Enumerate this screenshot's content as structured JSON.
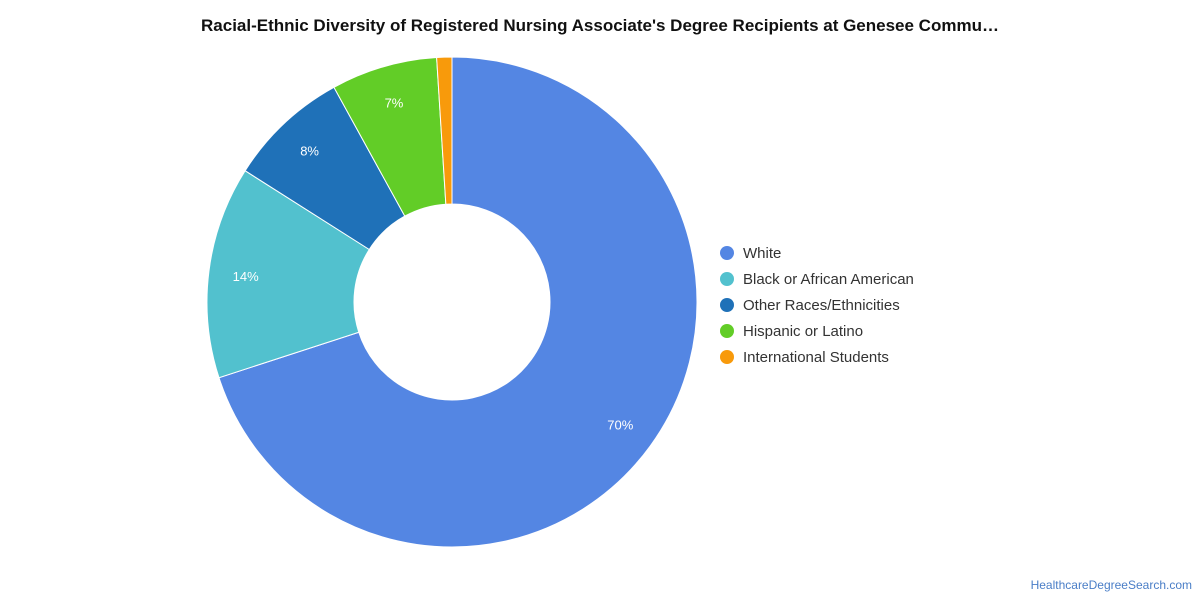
{
  "chart_data": {
    "type": "pie",
    "title": "Racial-Ethnic Diversity of Registered Nursing Associate's Degree Recipients at Genesee Commu…",
    "legend_position": "right",
    "slices": [
      {
        "name": "White",
        "value": 70,
        "label": "70%",
        "color": "#5486e3"
      },
      {
        "name": "Black or African American",
        "value": 14,
        "label": "14%",
        "color": "#52c1ce"
      },
      {
        "name": "Other Races/Ethnicities",
        "value": 8,
        "label": "8%",
        "color": "#1f71b8"
      },
      {
        "name": "Hispanic or Latino",
        "value": 7,
        "label": "7%",
        "color": "#62cd27"
      },
      {
        "name": "International Students",
        "value": 1,
        "label": "",
        "color": "#f89a0b"
      }
    ]
  },
  "footer": {
    "source": "HealthcareDegreeSearch.com"
  }
}
